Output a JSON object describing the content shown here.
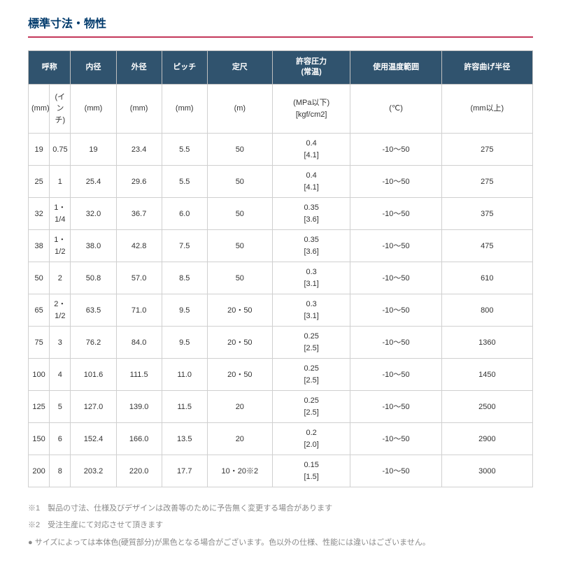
{
  "title": "標準寸法・物性",
  "colors": {
    "header_bg": "#30536e",
    "header_fg": "#ffffff",
    "title_color": "#003a6c",
    "title_border": "#c4375a",
    "cell_border": "#d0d0d0",
    "body_text": "#333333",
    "note_text": "#888888"
  },
  "headers": {
    "nominal": "呼称",
    "inner": "内径",
    "outer": "外径",
    "pitch": "ピッチ",
    "length": "定尺",
    "pressure": "許容圧力\n(常温)",
    "temp": "使用温度範囲",
    "bend": "許容曲げ半径"
  },
  "units": {
    "mm": "(mm)",
    "inch": "(インチ)",
    "inner": "(mm)",
    "outer": "(mm)",
    "pitch": "(mm)",
    "length": "(m)",
    "pressure": "(MPa以下)\n[kgf/cm2]",
    "temp": "(℃)",
    "bend": "(mm以上)"
  },
  "rows": [
    {
      "mm": "19",
      "inch": "0.75",
      "inner": "19",
      "outer": "23.4",
      "pitch": "5.5",
      "length": "50",
      "pressure": "0.4\n[4.1]",
      "temp": "-10～50",
      "bend": "275"
    },
    {
      "mm": "25",
      "inch": "1",
      "inner": "25.4",
      "outer": "29.6",
      "pitch": "5.5",
      "length": "50",
      "pressure": "0.4\n[4.1]",
      "temp": "-10～50",
      "bend": "275"
    },
    {
      "mm": "32",
      "inch": "1・1/4",
      "inner": "32.0",
      "outer": "36.7",
      "pitch": "6.0",
      "length": "50",
      "pressure": "0.35\n[3.6]",
      "temp": "-10～50",
      "bend": "375"
    },
    {
      "mm": "38",
      "inch": "1・1/2",
      "inner": "38.0",
      "outer": "42.8",
      "pitch": "7.5",
      "length": "50",
      "pressure": "0.35\n[3.6]",
      "temp": "-10～50",
      "bend": "475"
    },
    {
      "mm": "50",
      "inch": "2",
      "inner": "50.8",
      "outer": "57.0",
      "pitch": "8.5",
      "length": "50",
      "pressure": "0.3\n[3.1]",
      "temp": "-10～50",
      "bend": "610"
    },
    {
      "mm": "65",
      "inch": "2・1/2",
      "inner": "63.5",
      "outer": "71.0",
      "pitch": "9.5",
      "length": "20・50",
      "pressure": "0.3\n[3.1]",
      "temp": "-10～50",
      "bend": "800"
    },
    {
      "mm": "75",
      "inch": "3",
      "inner": "76.2",
      "outer": "84.0",
      "pitch": "9.5",
      "length": "20・50",
      "pressure": "0.25\n[2.5]",
      "temp": "-10～50",
      "bend": "1360"
    },
    {
      "mm": "100",
      "inch": "4",
      "inner": "101.6",
      "outer": "111.5",
      "pitch": "11.0",
      "length": "20・50",
      "pressure": "0.25\n[2.5]",
      "temp": "-10～50",
      "bend": "1450"
    },
    {
      "mm": "125",
      "inch": "5",
      "inner": "127.0",
      "outer": "139.0",
      "pitch": "11.5",
      "length": "20",
      "pressure": "0.25\n[2.5]",
      "temp": "-10～50",
      "bend": "2500"
    },
    {
      "mm": "150",
      "inch": "6",
      "inner": "152.4",
      "outer": "166.0",
      "pitch": "13.5",
      "length": "20",
      "pressure": "0.2\n[2.0]",
      "temp": "-10～50",
      "bend": "2900"
    },
    {
      "mm": "200",
      "inch": "8",
      "inner": "203.2",
      "outer": "220.0",
      "pitch": "17.7",
      "length": "10・20※2",
      "pressure": "0.15\n[1.5]",
      "temp": "-10～50",
      "bend": "3000"
    }
  ],
  "notes": [
    "※1　製品の寸法、仕様及びデザインは改善等のために予告無く変更する場合があります",
    "※2　受注生産にて対応させて頂きます",
    "● サイズによっては本体色(硬質部分)が黒色となる場合がございます。色以外の仕様、性能には違いはございません。"
  ]
}
